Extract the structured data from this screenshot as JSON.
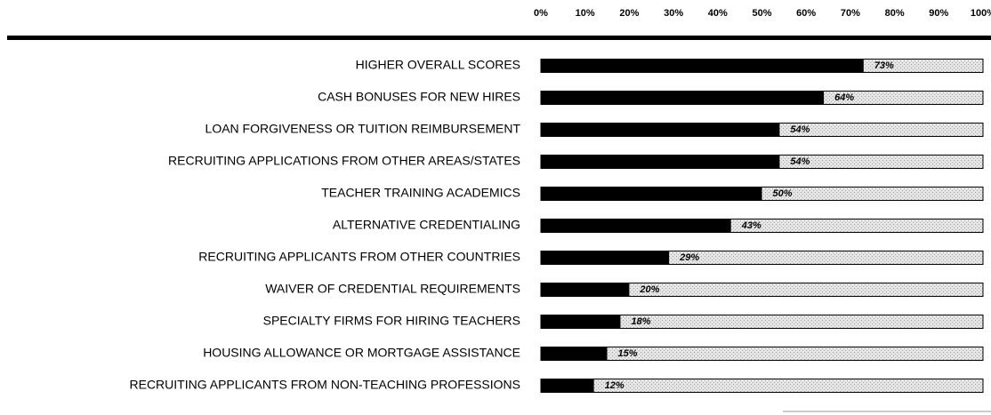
{
  "chart_data": {
    "type": "bar",
    "orientation": "horizontal",
    "categories": [
      "HIGHER OVERALL SCORES",
      "CASH BONUSES FOR NEW HIRES",
      "LOAN FORGIVENESS OR TUITION REIMBURSEMENT",
      "RECRUITING APPLICATIONS FROM OTHER AREAS/STATES",
      "TEACHER TRAINING ACADEMICS",
      "ALTERNATIVE CREDENTIALING",
      "RECRUITING APPLICANTS FROM OTHER COUNTRIES",
      "WAIVER OF CREDENTIAL REQUIREMENTS",
      "SPECIALTY FIRMS FOR HIRING TEACHERS",
      "HOUSING ALLOWANCE OR MORTGAGE ASSISTANCE",
      "RECRUITING APPLICANTS FROM NON-TEACHING PROFESSIONS"
    ],
    "values": [
      73,
      64,
      54,
      54,
      50,
      43,
      29,
      20,
      18,
      15,
      12
    ],
    "value_labels": [
      "73%",
      "64%",
      "54%",
      "54%",
      "50%",
      "43%",
      "29%",
      "20%",
      "18%",
      "15%",
      "12%"
    ],
    "color": "#000000",
    "xlim": [
      0,
      100
    ],
    "xticks": [
      {
        "value": 0,
        "label": "0%"
      },
      {
        "value": 10,
        "label": "10%"
      },
      {
        "value": 20,
        "label": "20%"
      },
      {
        "value": 30,
        "label": "30%"
      },
      {
        "value": 40,
        "label": "40%"
      },
      {
        "value": 50,
        "label": "50%"
      },
      {
        "value": 60,
        "label": "60%"
      },
      {
        "value": 70,
        "label": "70%"
      },
      {
        "value": 80,
        "label": "80%"
      },
      {
        "value": 90,
        "label": "90%"
      },
      {
        "value": 100,
        "label": "100%"
      }
    ]
  }
}
